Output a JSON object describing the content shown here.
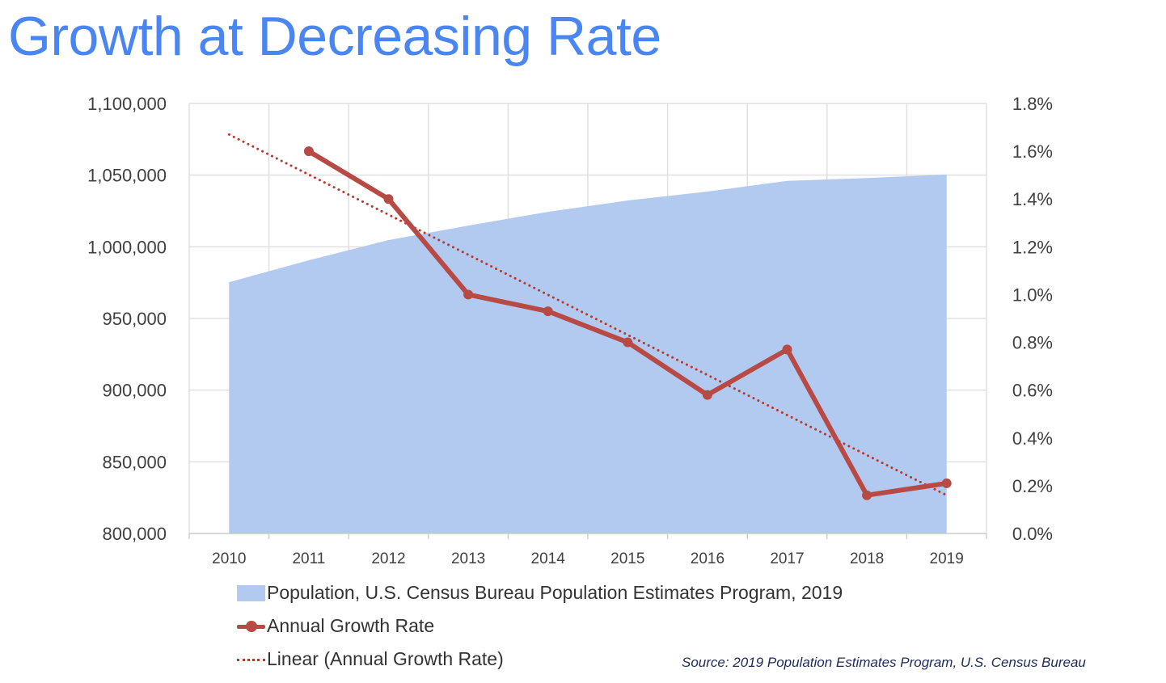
{
  "title": "Growth at Decreasing Rate",
  "source": "Source: 2019 Population Estimates Program, U.S. Census Bureau",
  "colors": {
    "title": "#4a86f2",
    "area": "#b3caf0",
    "line": "#b84a45",
    "trend": "#b8382c",
    "grid": "#e0e0e0",
    "tick_text": "#404040",
    "source": "#1f2a5c"
  },
  "legend": [
    {
      "key": "population",
      "label": "Population, U.S. Census Bureau Population Estimates Program, 2019"
    },
    {
      "key": "growth",
      "label": "Annual Growth Rate"
    },
    {
      "key": "trend",
      "label": "Linear (Annual Growth Rate)"
    }
  ],
  "chart_data": {
    "type": "area",
    "title": "Growth at Decreasing Rate",
    "xlabel": "",
    "ylabel": "",
    "y2label": "",
    "categories": [
      "2010",
      "2011",
      "2012",
      "2013",
      "2014",
      "2015",
      "2016",
      "2017",
      "2018",
      "2019"
    ],
    "ylim": [
      800000,
      1100000
    ],
    "yticks": [
      800000,
      850000,
      900000,
      950000,
      1000000,
      1050000,
      1100000
    ],
    "ytick_labels": [
      "800,000",
      "850,000",
      "900,000",
      "950,000",
      "1,000,000",
      "1,050,000",
      "1,100,000"
    ],
    "y2lim": [
      0,
      1.8
    ],
    "y2ticks": [
      0,
      0.2,
      0.4,
      0.6,
      0.8,
      1.0,
      1.2,
      1.4,
      1.6,
      1.8
    ],
    "y2tick_labels": [
      "0.0%",
      "0.2%",
      "0.4%",
      "0.6%",
      "0.8%",
      "1.0%",
      "1.2%",
      "1.4%",
      "1.6%",
      "1.8%"
    ],
    "grid": true,
    "legend_position": "bottom-left",
    "series": [
      {
        "name": "Population, U.S. Census Bureau Population Estimates Program, 2019",
        "type": "area",
        "axis": "left",
        "values": [
          975300,
          990600,
          1004700,
          1014800,
          1024400,
          1032300,
          1038500,
          1046000,
          1048000,
          1050400
        ]
      },
      {
        "name": "Annual Growth Rate",
        "type": "line",
        "axis": "right",
        "unit": "%",
        "values": [
          null,
          1.6,
          1.4,
          1.0,
          0.93,
          0.8,
          0.58,
          0.77,
          0.16,
          0.21
        ]
      },
      {
        "name": "Linear (Annual Growth Rate)",
        "type": "trendline",
        "axis": "right",
        "unit": "%",
        "start": {
          "x": "2010",
          "value": 1.67
        },
        "end": {
          "x": "2019",
          "value": 0.16
        }
      }
    ]
  }
}
